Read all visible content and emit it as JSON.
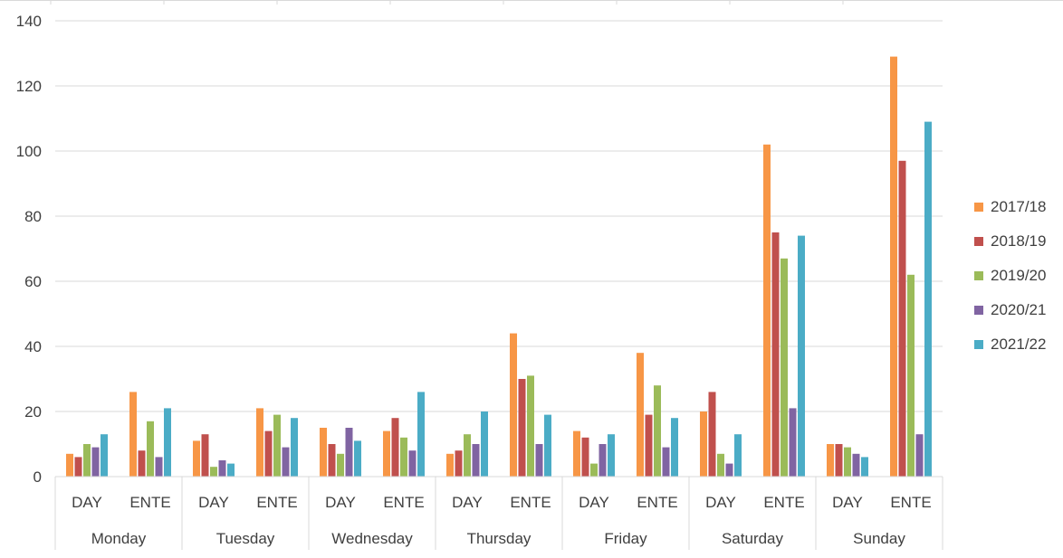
{
  "chart_data": {
    "type": "bar",
    "title": "",
    "xlabel": "",
    "ylabel": "",
    "ylim": [
      0,
      140
    ],
    "yticks": [
      0,
      20,
      40,
      60,
      80,
      100,
      120,
      140
    ],
    "grid": true,
    "legend_position": "right",
    "groups": [
      "Monday",
      "Tuesday",
      "Wednesday",
      "Thursday",
      "Friday",
      "Saturday",
      "Sunday"
    ],
    "subcategories": [
      "DAY",
      "ENTE"
    ],
    "categories": [
      "Monday DAY",
      "Monday ENTE",
      "Tuesday DAY",
      "Tuesday ENTE",
      "Wednesday DAY",
      "Wednesday ENTE",
      "Thursday DAY",
      "Thursday ENTE",
      "Friday DAY",
      "Friday ENTE",
      "Saturday DAY",
      "Saturday ENTE",
      "Sunday DAY",
      "Sunday ENTE"
    ],
    "series": [
      {
        "name": "2017/18",
        "color": "#f79646",
        "values": [
          7,
          26,
          11,
          21,
          15,
          14,
          7,
          44,
          14,
          38,
          20,
          102,
          10,
          129
        ]
      },
      {
        "name": "2018/19",
        "color": "#c0504d",
        "values": [
          6,
          8,
          13,
          14,
          10,
          18,
          8,
          30,
          12,
          19,
          26,
          75,
          10,
          97
        ]
      },
      {
        "name": "2019/20",
        "color": "#9bbb59",
        "values": [
          10,
          17,
          3,
          19,
          7,
          12,
          13,
          31,
          4,
          28,
          7,
          67,
          9,
          62
        ]
      },
      {
        "name": "2020/21",
        "color": "#8064a2",
        "values": [
          9,
          6,
          5,
          9,
          15,
          8,
          10,
          10,
          10,
          9,
          4,
          21,
          7,
          13
        ]
      },
      {
        "name": "2021/22",
        "color": "#4bacc6",
        "values": [
          13,
          21,
          4,
          18,
          11,
          26,
          20,
          19,
          13,
          18,
          13,
          74,
          6,
          109
        ]
      }
    ]
  }
}
